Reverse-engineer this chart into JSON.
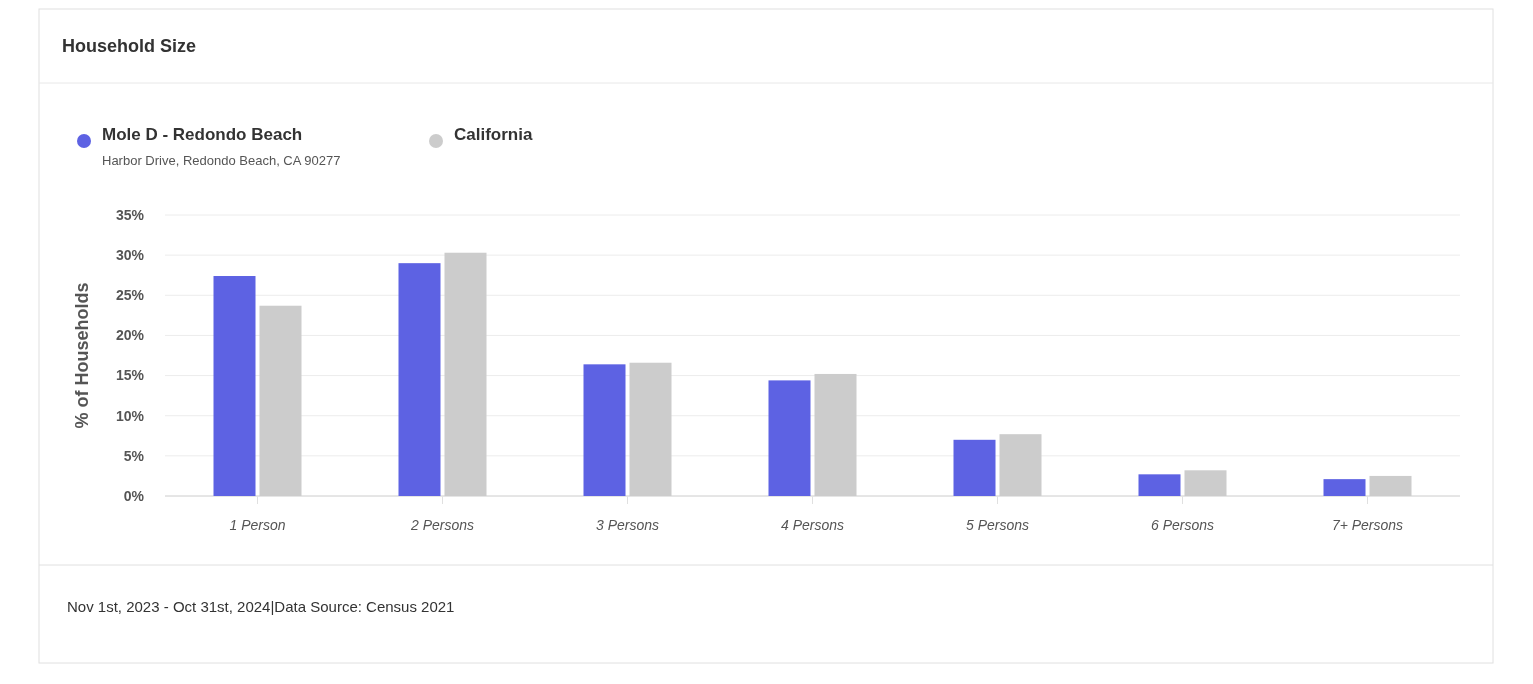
{
  "chart_data": {
    "type": "bar",
    "title": "Household Size",
    "ylabel": "% of Households",
    "categories": [
      "1 Person",
      "2 Persons",
      "3 Persons",
      "4 Persons",
      "5 Persons",
      "6 Persons",
      "7+ Persons"
    ],
    "series": [
      {
        "name": "Mole D - Redondo Beach",
        "color": "#5d62e3",
        "values": [
          27.4,
          29.0,
          16.4,
          14.4,
          7.0,
          2.7,
          2.1
        ]
      },
      {
        "name": "California",
        "color": "#cccccc",
        "values": [
          23.7,
          30.3,
          16.6,
          15.2,
          7.7,
          3.2,
          2.5
        ]
      }
    ],
    "ylim": [
      0,
      35
    ],
    "yticks": [
      {
        "value": 0,
        "label": "0%"
      },
      {
        "value": 5,
        "label": "5%"
      },
      {
        "value": 10,
        "label": "10%"
      },
      {
        "value": 15,
        "label": "15%"
      },
      {
        "value": 20,
        "label": "20%"
      },
      {
        "value": 25,
        "label": "25%"
      },
      {
        "value": 30,
        "label": "30%"
      },
      {
        "value": 35,
        "label": "35%"
      }
    ],
    "grid": "y",
    "legend": "top left",
    "annotations": [
      "Harbor Drive, Redondo Beach, CA 90277",
      "Nov 1st, 2023 - Oct 31st, 2024|Data Source: Census 2021"
    ]
  }
}
